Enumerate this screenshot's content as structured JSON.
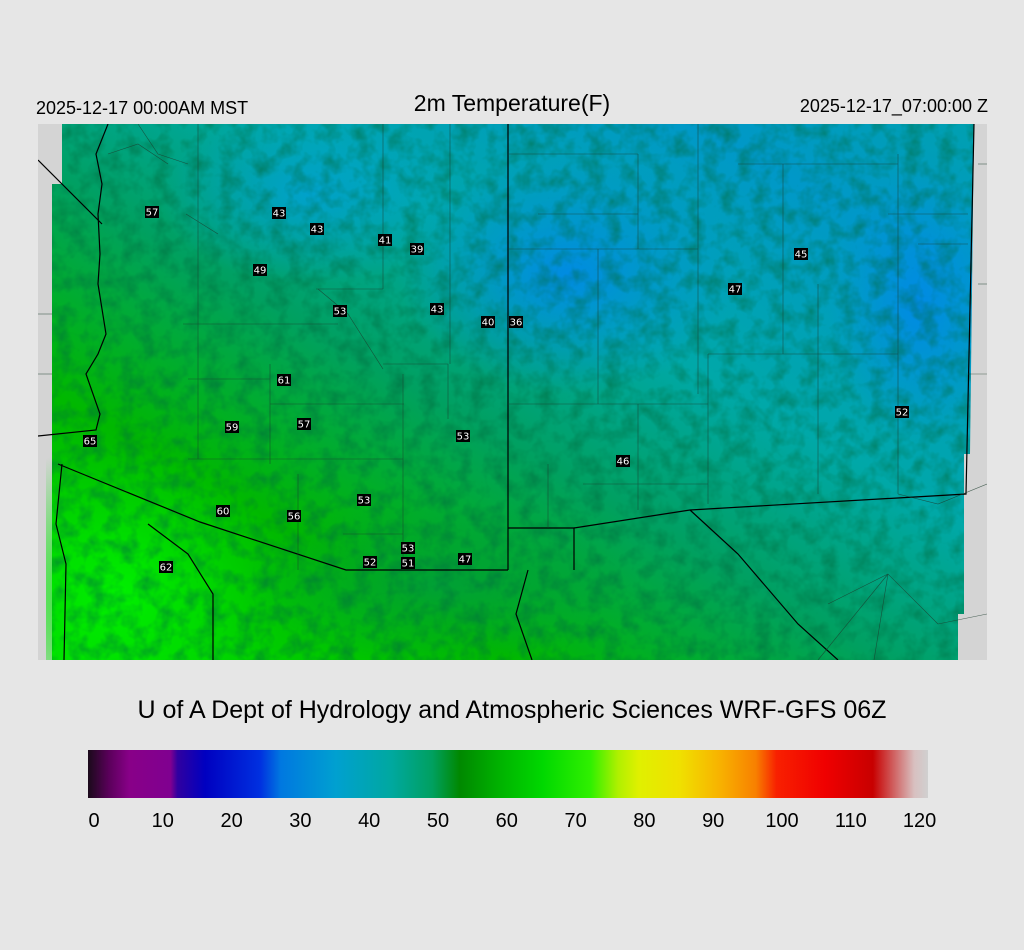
{
  "header": {
    "local_time": "2025-12-17 00:00AM MST",
    "title": "2m Temperature(F)",
    "utc_time": "2025-12-17_07:00:00 Z"
  },
  "credit": "U of A Dept of Hydrology and Atmospheric Sciences WRF-GFS 06Z",
  "station_values": [
    "57",
    "43",
    "43",
    "41",
    "39",
    "49",
    "53",
    "43",
    "40",
    "36",
    "47",
    "45",
    "61",
    "59",
    "57",
    "53",
    "65",
    "53",
    "46",
    "52",
    "60",
    "56",
    "53",
    "52",
    "47",
    "51",
    "62"
  ],
  "colorbar": {
    "ticks": [
      "0",
      "10",
      "20",
      "30",
      "40",
      "50",
      "60",
      "70",
      "80",
      "90",
      "100",
      "110",
      "120"
    ],
    "range": [
      0,
      122
    ],
    "stops": [
      {
        "v": 0,
        "c": "#1a0a1a"
      },
      {
        "v": 3,
        "c": "#5a005a"
      },
      {
        "v": 6,
        "c": "#880088"
      },
      {
        "v": 12,
        "c": "#800090"
      },
      {
        "v": 13,
        "c": "#3000a0"
      },
      {
        "v": 17,
        "c": "#0000c0"
      },
      {
        "v": 25,
        "c": "#0030e0"
      },
      {
        "v": 28,
        "c": "#0078e0"
      },
      {
        "v": 36,
        "c": "#00a0d0"
      },
      {
        "v": 44,
        "c": "#00a8a0"
      },
      {
        "v": 50,
        "c": "#00a060"
      },
      {
        "v": 54,
        "c": "#008800"
      },
      {
        "v": 60,
        "c": "#00b400"
      },
      {
        "v": 66,
        "c": "#00d800"
      },
      {
        "v": 73,
        "c": "#30f000"
      },
      {
        "v": 77,
        "c": "#b0f000"
      },
      {
        "v": 80,
        "c": "#e0f000"
      },
      {
        "v": 86,
        "c": "#f0e000"
      },
      {
        "v": 92,
        "c": "#f8b000"
      },
      {
        "v": 97,
        "c": "#f88000"
      },
      {
        "v": 100,
        "c": "#f82000"
      },
      {
        "v": 107,
        "c": "#f00000"
      },
      {
        "v": 114,
        "c": "#c80000"
      },
      {
        "v": 117,
        "c": "#d06060"
      },
      {
        "v": 120,
        "c": "#d8c0c0"
      },
      {
        "v": 122,
        "c": "#d0d0d0"
      }
    ]
  }
}
